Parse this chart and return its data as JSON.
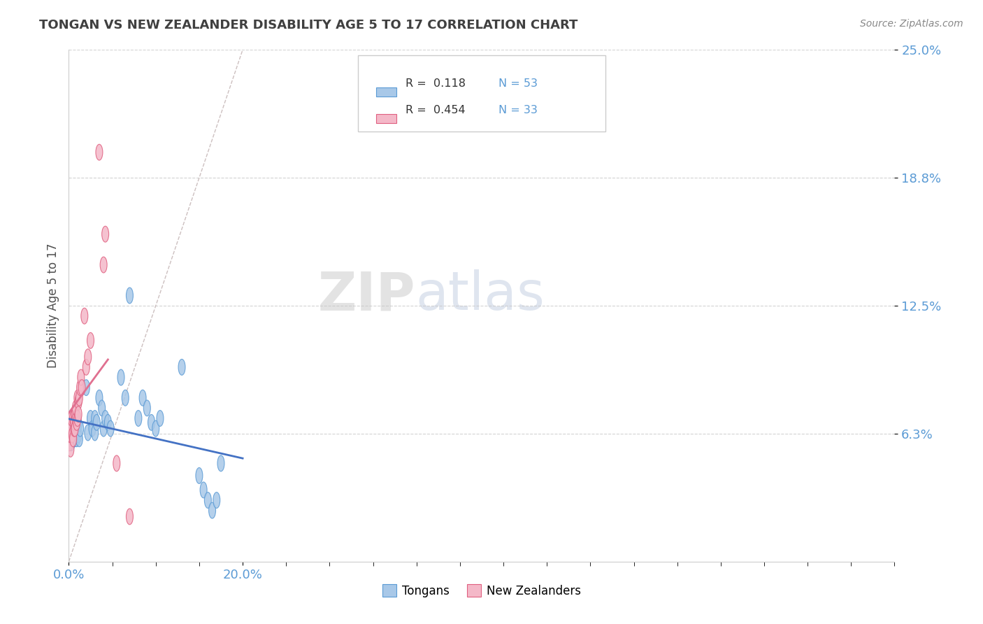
{
  "title": "TONGAN VS NEW ZEALANDER DISABILITY AGE 5 TO 17 CORRELATION CHART",
  "source": "Source: ZipAtlas.com",
  "ylabel": "Disability Age 5 to 17",
  "xmin": 0.0,
  "xmax": 0.2,
  "ymin": 0.0,
  "ymax": 0.25,
  "yticks": [
    0.0625,
    0.125,
    0.1875,
    0.25
  ],
  "ytick_labels": [
    "6.3%",
    "12.5%",
    "18.8%",
    "25.0%"
  ],
  "xtick_left_label": "0.0%",
  "xtick_right_label": "20.0%",
  "blue_color": "#a8c8e8",
  "pink_color": "#f4b8c8",
  "blue_edge_color": "#5b9bd5",
  "pink_edge_color": "#e06080",
  "blue_line_color": "#4472c4",
  "pink_line_color": "#e07090",
  "R_blue": 0.118,
  "N_blue": 53,
  "R_pink": 0.454,
  "N_pink": 33,
  "legend_label_blue": "Tongans",
  "legend_label_pink": "New Zealanders",
  "watermark_zip": "ZIP",
  "watermark_atlas": "atlas",
  "blue_scatter_x": [
    0.001,
    0.001,
    0.002,
    0.002,
    0.003,
    0.003,
    0.004,
    0.004,
    0.005,
    0.005,
    0.006,
    0.006,
    0.007,
    0.007,
    0.008,
    0.008,
    0.009,
    0.009,
    0.01,
    0.01,
    0.011,
    0.011,
    0.012,
    0.013,
    0.02,
    0.022,
    0.025,
    0.027,
    0.03,
    0.03,
    0.032,
    0.035,
    0.038,
    0.04,
    0.042,
    0.045,
    0.048,
    0.06,
    0.065,
    0.07,
    0.08,
    0.085,
    0.09,
    0.095,
    0.1,
    0.105,
    0.13,
    0.15,
    0.155,
    0.16,
    0.165,
    0.17,
    0.175
  ],
  "blue_scatter_y": [
    0.058,
    0.063,
    0.06,
    0.065,
    0.058,
    0.065,
    0.062,
    0.067,
    0.06,
    0.065,
    0.063,
    0.068,
    0.06,
    0.065,
    0.063,
    0.068,
    0.06,
    0.065,
    0.063,
    0.068,
    0.062,
    0.067,
    0.06,
    0.065,
    0.085,
    0.063,
    0.07,
    0.065,
    0.07,
    0.063,
    0.068,
    0.08,
    0.075,
    0.065,
    0.07,
    0.068,
    0.065,
    0.09,
    0.08,
    0.13,
    0.07,
    0.08,
    0.075,
    0.068,
    0.065,
    0.07,
    0.095,
    0.042,
    0.035,
    0.03,
    0.025,
    0.03,
    0.048
  ],
  "pink_scatter_x": [
    0.001,
    0.001,
    0.002,
    0.002,
    0.003,
    0.003,
    0.004,
    0.005,
    0.005,
    0.006,
    0.006,
    0.007,
    0.007,
    0.008,
    0.008,
    0.009,
    0.01,
    0.01,
    0.011,
    0.011,
    0.012,
    0.013,
    0.014,
    0.015,
    0.018,
    0.02,
    0.022,
    0.025,
    0.035,
    0.04,
    0.042,
    0.055,
    0.07
  ],
  "pink_scatter_y": [
    0.058,
    0.065,
    0.055,
    0.062,
    0.065,
    0.07,
    0.062,
    0.06,
    0.07,
    0.065,
    0.068,
    0.072,
    0.065,
    0.07,
    0.075,
    0.068,
    0.07,
    0.08,
    0.078,
    0.072,
    0.08,
    0.085,
    0.09,
    0.085,
    0.12,
    0.095,
    0.1,
    0.108,
    0.2,
    0.145,
    0.16,
    0.048,
    0.022
  ],
  "pink_line_xmax": 0.045,
  "background_color": "#ffffff",
  "grid_color": "#c8c8c8",
  "axis_label_color": "#5b9bd5",
  "title_color": "#404040"
}
